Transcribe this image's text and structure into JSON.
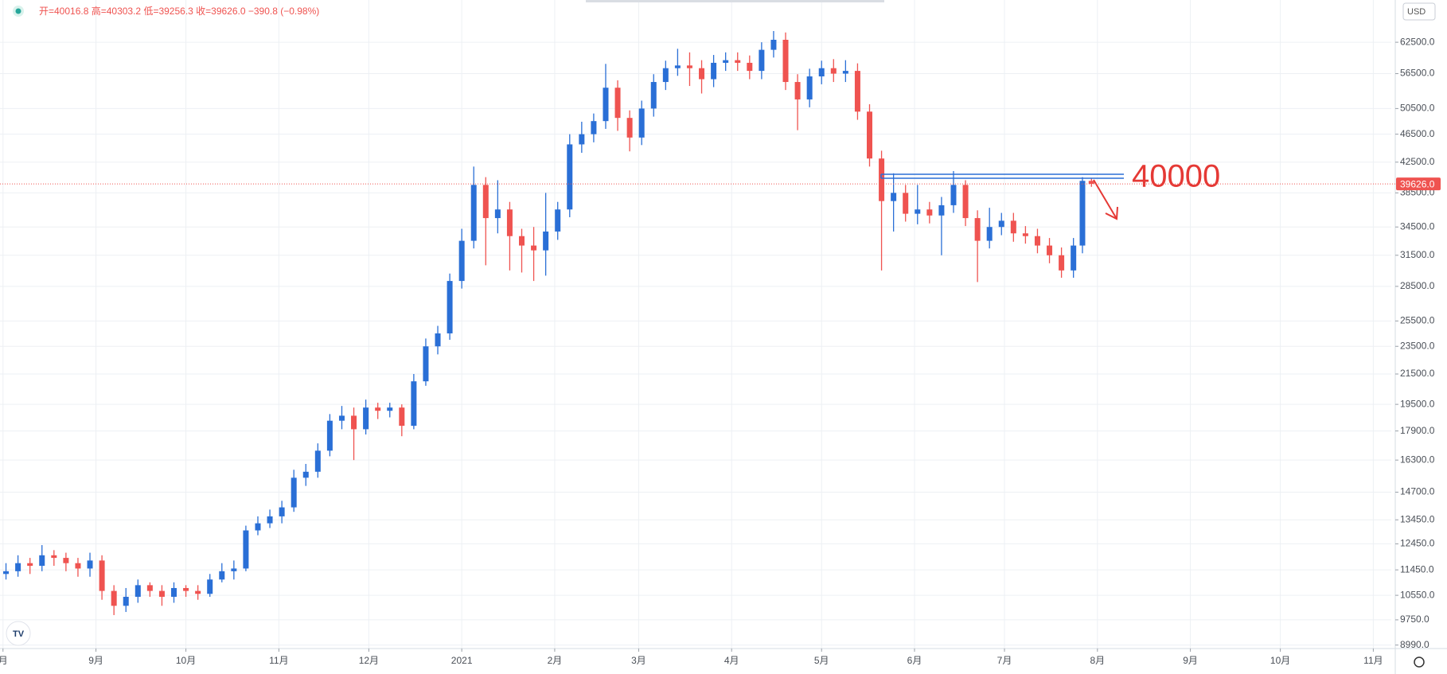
{
  "chart_data": {
    "type": "candlestick",
    "legend_text": "开=40016.8 高=40303.2 低=39256.3 收=39626.0 −390.8 (−0.98%)",
    "currency": "USD",
    "annotation": "40000",
    "log_scale": true,
    "grid": true,
    "up_color": "#2a6fd6",
    "down_color": "#ef5350",
    "xlim": [
      0,
      464
    ],
    "ylim": [
      8890,
      71600
    ],
    "xticks": [
      {
        "value": 1,
        "label": "月"
      },
      {
        "value": 32,
        "label": "9月"
      },
      {
        "value": 62,
        "label": "10月"
      },
      {
        "value": 93,
        "label": "11月"
      },
      {
        "value": 123,
        "label": "12月"
      },
      {
        "value": 154,
        "label": "2021"
      },
      {
        "value": 185,
        "label": "2月"
      },
      {
        "value": 213,
        "label": "3月"
      },
      {
        "value": 244,
        "label": "4月"
      },
      {
        "value": 274,
        "label": "5月"
      },
      {
        "value": 305,
        "label": "6月"
      },
      {
        "value": 335,
        "label": "7月"
      },
      {
        "value": 366,
        "label": "8月"
      },
      {
        "value": 397,
        "label": "9月"
      },
      {
        "value": 427,
        "label": "10月"
      },
      {
        "value": 458,
        "label": "11月"
      }
    ],
    "yticks": [
      {
        "value": 62500,
        "label": "62500.0"
      },
      {
        "value": 56500,
        "label": "56500.0"
      },
      {
        "value": 50500,
        "label": "50500.0"
      },
      {
        "value": 46500,
        "label": "46500.0"
      },
      {
        "value": 42500,
        "label": "42500.0"
      },
      {
        "value": 38500,
        "label": "38500.0"
      },
      {
        "value": 34500,
        "label": "34500.0"
      },
      {
        "value": 31500,
        "label": "31500.0"
      },
      {
        "value": 28500,
        "label": "28500.0"
      },
      {
        "value": 25500,
        "label": "25500.0"
      },
      {
        "value": 23500,
        "label": "23500.0"
      },
      {
        "value": 21500,
        "label": "21500.0"
      },
      {
        "value": 19500,
        "label": "19500.0"
      },
      {
        "value": 17900,
        "label": "17900.0"
      },
      {
        "value": 16300,
        "label": "16300.0"
      },
      {
        "value": 14700,
        "label": "14700.0"
      },
      {
        "value": 13450,
        "label": "13450.0"
      },
      {
        "value": 12450,
        "label": "12450.0"
      },
      {
        "value": 11450,
        "label": "11450.0"
      },
      {
        "value": 10550,
        "label": "10550.0"
      },
      {
        "value": 9750,
        "label": "9750.0"
      },
      {
        "value": 8990,
        "label": "8990.0"
      }
    ],
    "last_price": {
      "value": 39626,
      "label": "39626.0"
    },
    "x": [
      2,
      6,
      10,
      14,
      18,
      22,
      26,
      30,
      34,
      38,
      42,
      46,
      50,
      54,
      58,
      62,
      66,
      70,
      74,
      78,
      82,
      86,
      90,
      94,
      98,
      102,
      106,
      110,
      114,
      118,
      122,
      126,
      130,
      134,
      138,
      142,
      146,
      150,
      154,
      158,
      162,
      166,
      170,
      174,
      178,
      182,
      186,
      190,
      194,
      198,
      202,
      206,
      210,
      214,
      218,
      222,
      226,
      230,
      234,
      238,
      242,
      246,
      250,
      254,
      258,
      262,
      266,
      270,
      274,
      278,
      282,
      286,
      290,
      294,
      298,
      302,
      306,
      310,
      314,
      318,
      322,
      326,
      330,
      334,
      338,
      342,
      346,
      350,
      354,
      358,
      361,
      364
    ],
    "candles": [
      [
        11300,
        11700,
        11100,
        11400
      ],
      [
        11400,
        12000,
        11200,
        11700
      ],
      [
        11700,
        11900,
        11300,
        11600
      ],
      [
        11600,
        12400,
        11400,
        12000
      ],
      [
        12000,
        12200,
        11600,
        11900
      ],
      [
        11900,
        12100,
        11400,
        11700
      ],
      [
        11700,
        11900,
        11200,
        11500
      ],
      [
        11500,
        12100,
        11200,
        11800
      ],
      [
        11800,
        12000,
        10400,
        10700
      ],
      [
        10700,
        10900,
        9900,
        10200
      ],
      [
        10200,
        10800,
        10000,
        10500
      ],
      [
        10500,
        11100,
        10300,
        10900
      ],
      [
        10900,
        11000,
        10500,
        10700
      ],
      [
        10700,
        10900,
        10200,
        10500
      ],
      [
        10500,
        11000,
        10300,
        10800
      ],
      [
        10800,
        10900,
        10500,
        10700
      ],
      [
        10700,
        10900,
        10400,
        10600
      ],
      [
        10600,
        11300,
        10500,
        11100
      ],
      [
        11100,
        11700,
        11000,
        11400
      ],
      [
        11400,
        11800,
        11100,
        11500
      ],
      [
        11500,
        13200,
        11400,
        13000
      ],
      [
        13000,
        13600,
        12800,
        13300
      ],
      [
        13300,
        13900,
        13100,
        13600
      ],
      [
        13600,
        14300,
        13300,
        14000
      ],
      [
        14000,
        15800,
        13800,
        15400
      ],
      [
        15400,
        16100,
        15000,
        15700
      ],
      [
        15700,
        17200,
        15400,
        16800
      ],
      [
        16800,
        18900,
        16500,
        18500
      ],
      [
        18500,
        19400,
        18000,
        18800
      ],
      [
        18800,
        19300,
        16300,
        18000
      ],
      [
        18000,
        19800,
        17700,
        19300
      ],
      [
        19300,
        19600,
        18600,
        19100
      ],
      [
        19100,
        19600,
        18700,
        19300
      ],
      [
        19300,
        19500,
        17600,
        18200
      ],
      [
        18200,
        21500,
        18000,
        21000
      ],
      [
        21000,
        24100,
        20700,
        23500
      ],
      [
        23500,
        25100,
        22900,
        24500
      ],
      [
        24500,
        29700,
        24000,
        29000
      ],
      [
        29000,
        34300,
        28300,
        33000
      ],
      [
        33000,
        41900,
        32200,
        39500
      ],
      [
        39500,
        40500,
        30500,
        35500
      ],
      [
        35500,
        40100,
        33800,
        36500
      ],
      [
        36500,
        37400,
        30000,
        33500
      ],
      [
        33500,
        34300,
        29800,
        32500
      ],
      [
        32500,
        34500,
        29000,
        32000
      ],
      [
        32000,
        38500,
        29500,
        34000
      ],
      [
        34000,
        37400,
        33100,
        36500
      ],
      [
        36500,
        46500,
        35600,
        45000
      ],
      [
        45000,
        48400,
        43800,
        46500
      ],
      [
        46500,
        49700,
        45300,
        48500
      ],
      [
        48500,
        58300,
        47300,
        54000
      ],
      [
        54000,
        55300,
        47000,
        49000
      ],
      [
        49000,
        50200,
        44000,
        46000
      ],
      [
        46000,
        51800,
        44900,
        50500
      ],
      [
        50500,
        56400,
        49200,
        55000
      ],
      [
        55000,
        58900,
        53600,
        57500
      ],
      [
        57500,
        61200,
        56100,
        58000
      ],
      [
        58000,
        60500,
        54300,
        57500
      ],
      [
        57500,
        59000,
        53000,
        55500
      ],
      [
        55500,
        60000,
        54100,
        58500
      ],
      [
        58500,
        60500,
        57000,
        59000
      ],
      [
        59000,
        60500,
        57000,
        58500
      ],
      [
        58500,
        59900,
        55500,
        57000
      ],
      [
        57000,
        62500,
        55500,
        61000
      ],
      [
        61000,
        64800,
        59500,
        63000
      ],
      [
        63000,
        64500,
        53600,
        55000
      ],
      [
        55000,
        56400,
        47100,
        52000
      ],
      [
        52000,
        57400,
        50700,
        56000
      ],
      [
        56000,
        58900,
        54600,
        57500
      ],
      [
        57500,
        59200,
        55000,
        56500
      ],
      [
        56500,
        59000,
        55000,
        57000
      ],
      [
        57000,
        58400,
        48700,
        50000
      ],
      [
        50000,
        51200,
        41900,
        43000
      ],
      [
        43000,
        44100,
        30000,
        37500
      ],
      [
        37500,
        41000,
        34000,
        38500
      ],
      [
        38500,
        39500,
        35100,
        36000
      ],
      [
        36000,
        39500,
        34800,
        36500
      ],
      [
        36500,
        37400,
        34900,
        35800
      ],
      [
        35800,
        38000,
        31500,
        37000
      ],
      [
        37000,
        41300,
        36100,
        39500
      ],
      [
        39500,
        40100,
        34600,
        35500
      ],
      [
        35500,
        36400,
        28900,
        33000
      ],
      [
        33000,
        36700,
        32200,
        34500
      ],
      [
        34500,
        36100,
        33600,
        35200
      ],
      [
        35200,
        36100,
        32900,
        33800
      ],
      [
        33800,
        34600,
        32700,
        33500
      ],
      [
        33500,
        34300,
        31700,
        32500
      ],
      [
        32500,
        33300,
        30700,
        31500
      ],
      [
        31500,
        32300,
        29300,
        30000
      ],
      [
        30000,
        33300,
        29300,
        32500
      ],
      [
        32500,
        40500,
        31700,
        40016.8
      ],
      [
        40016.8,
        40303.2,
        39256.3,
        39626
      ]
    ]
  }
}
